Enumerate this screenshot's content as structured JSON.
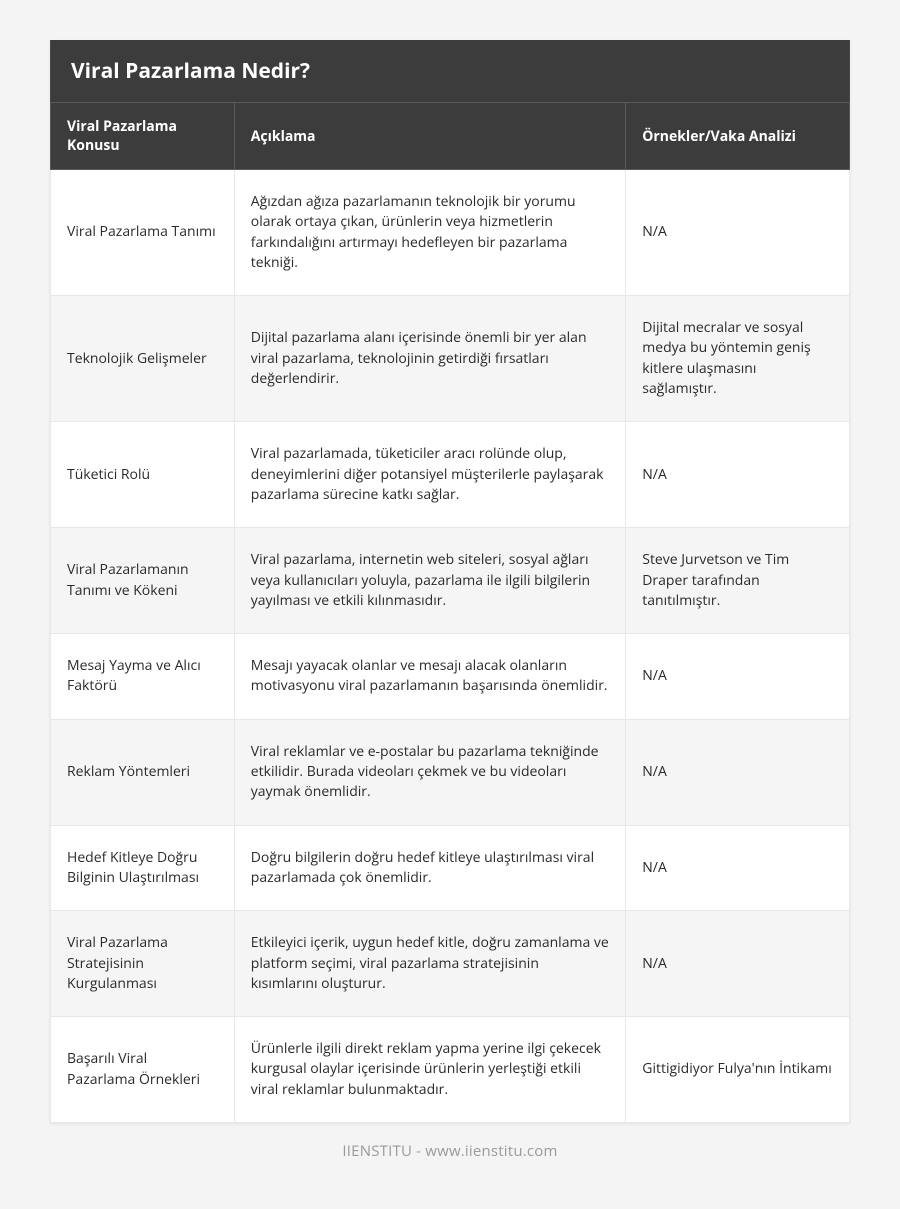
{
  "title": "Viral Pazarlama Nedir?",
  "table": {
    "type": "table",
    "background_color": "#ffffff",
    "header_bg": "#3c3c3c",
    "header_text_color": "#ffffff",
    "row_alt_bg": "#f5f5f5",
    "border_color": "#e8e8e8",
    "columns": [
      {
        "label": "Viral Pazarlama Konusu",
        "width_pct": 23,
        "align": "left"
      },
      {
        "label": "Açıklama",
        "width_pct": 49,
        "align": "left"
      },
      {
        "label": "Örnekler/Vaka Analizi",
        "width_pct": 28,
        "align": "left"
      }
    ],
    "rows": [
      {
        "topic": "Viral Pazarlama Tanımı",
        "description": "Ağızdan ağıza pazarlamanın teknolojik bir yorumu olarak ortaya çıkan, ürünlerin veya hizmetlerin farkındalığını artırmayı hedefleyen bir pazarlama tekniği.",
        "examples": "N/A"
      },
      {
        "topic": "Teknolojik Gelişmeler",
        "description": "Dijital pazarlama alanı içerisinde önemli bir yer alan viral pazarlama, teknolojinin getirdiği fırsatları değerlendirir.",
        "examples": "Dijital mecralar ve sosyal medya bu yöntemin geniş kitlere ulaşmasını sağlamıştır."
      },
      {
        "topic": "Tüketici Rolü",
        "description": "Viral pazarlamada, tüketiciler aracı rolünde olup, deneyimlerini diğer potansiyel müşterilerle paylaşarak pazarlama sürecine katkı sağlar.",
        "examples": "N/A"
      },
      {
        "topic": "Viral Pazarlamanın Tanımı ve Kökeni",
        "description": "Viral pazarlama, internetin web siteleri, sosyal ağları veya kullanıcıları yoluyla, pazarlama ile ilgili bilgilerin yayılması ve etkili kılınmasıdır.",
        "examples": "Steve Jurvetson ve Tim Draper tarafından tanıtılmıştır."
      },
      {
        "topic": "Mesaj Yayma ve Alıcı Faktörü",
        "description": "Mesajı yayacak olanlar ve mesajı alacak olanların motivasyonu viral pazarlamanın başarısında önemlidir.",
        "examples": "N/A"
      },
      {
        "topic": "Reklam Yöntemleri",
        "description": "Viral reklamlar ve e-postalar bu pazarlama tekniğinde etkilidir. Burada videoları çekmek ve bu videoları yaymak önemlidir.",
        "examples": "N/A"
      },
      {
        "topic": "Hedef Kitleye Doğru Bilginin Ulaştırılması",
        "description": "Doğru bilgilerin doğru hedef kitleye ulaştırılması viral pazarlamada çok önemlidir.",
        "examples": "N/A"
      },
      {
        "topic": "Viral Pazarlama Stratejisinin Kurgulanması",
        "description": "Etkileyici içerik, uygun hedef kitle, doğru zamanlama ve platform seçimi, viral pazarlama stratejisinin kısımlarını oluşturur.",
        "examples": "N/A"
      },
      {
        "topic": "Başarılı Viral Pazarlama Örnekleri",
        "description": "Ürünlerle ilgili direkt reklam yapma yerine ilgi çekecek kurgusal olaylar içerisinde ürünlerin yerleştiği etkili viral reklamlar bulunmaktadır.",
        "examples": "Gittigidiyor Fulya'nın İntikamı"
      }
    ]
  },
  "footer": "IIENSTITU - www.iienstitu.com"
}
